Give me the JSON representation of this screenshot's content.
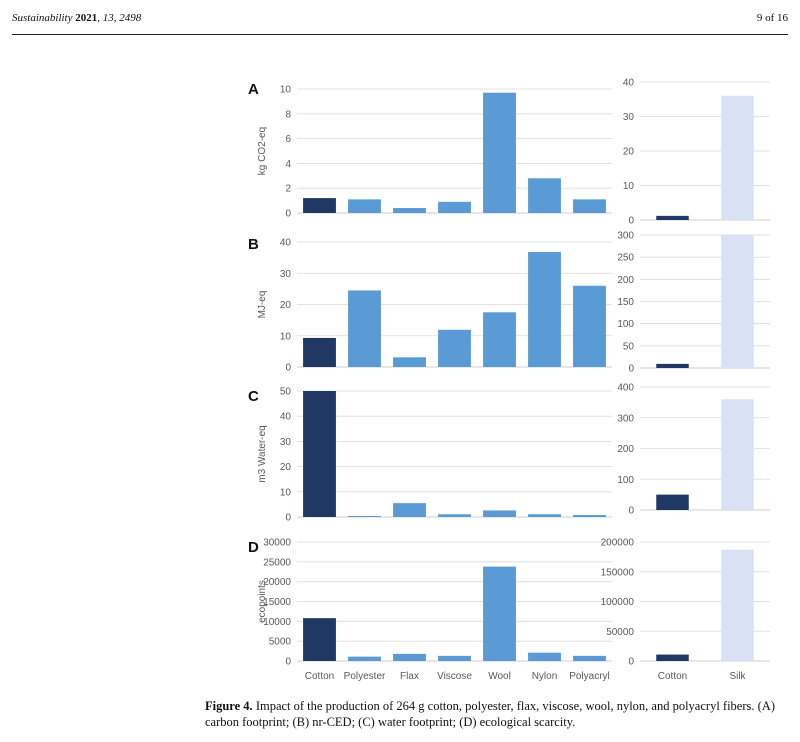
{
  "header": {
    "journal": "Sustainability",
    "year": "2021",
    "volume": "13",
    "article": "2498",
    "page": "9 of 16"
  },
  "colors": {
    "cotton": "#1f3864",
    "synthetic": "#5b9bd5",
    "silk": "#d9e1f5",
    "axis_text": "#595959",
    "grid": "#d9d9d9"
  },
  "chart_data": [
    {
      "type": "bar",
      "panel": "A",
      "title": "",
      "xlabel": "",
      "ylabel": "kg CO2-eq",
      "categories": [
        "Cotton",
        "Polyester",
        "Flax",
        "Viscose",
        "Wool",
        "Nylon",
        "Polyacryl"
      ],
      "values": [
        1.2,
        1.1,
        0.4,
        0.9,
        9.7,
        2.8,
        1.1
      ],
      "ylim": [
        0,
        10
      ],
      "yticks": [
        0,
        2,
        4,
        6,
        8,
        10
      ],
      "tick_labels": [
        "0",
        "2",
        "4",
        "6",
        "8",
        "10"
      ]
    },
    {
      "type": "bar",
      "panel": "A",
      "title": "",
      "xlabel": "",
      "ylabel": "",
      "categories": [
        "Cotton",
        "Silk"
      ],
      "values": [
        1.2,
        36
      ],
      "ylim": [
        0,
        40
      ],
      "yticks": [
        0,
        10,
        20,
        30,
        40
      ],
      "tick_labels": [
        "0",
        "10",
        "20",
        "30",
        "40"
      ]
    },
    {
      "type": "bar",
      "panel": "B",
      "title": "",
      "xlabel": "",
      "ylabel": "MJ-eq",
      "categories": [
        "Cotton",
        "Polyester",
        "Flax",
        "Viscose",
        "Wool",
        "Nylon",
        "Polyacryl"
      ],
      "values": [
        9.3,
        24.5,
        3.1,
        11.9,
        17.5,
        36.8,
        26
      ],
      "ylim": [
        0,
        40
      ],
      "yticks": [
        0,
        10,
        20,
        30,
        40
      ],
      "tick_labels": [
        "0",
        "10",
        "20",
        "30",
        "40"
      ]
    },
    {
      "type": "bar",
      "panel": "B",
      "title": "",
      "xlabel": "",
      "ylabel": "",
      "categories": [
        "Cotton",
        "Silk"
      ],
      "values": [
        9.3,
        300
      ],
      "ylim": [
        0,
        300
      ],
      "yticks": [
        0,
        50,
        100,
        150,
        200,
        250,
        300
      ],
      "tick_labels": [
        "0",
        "50",
        "100",
        "150",
        "200",
        "250",
        "300"
      ]
    },
    {
      "type": "bar",
      "panel": "C",
      "title": "",
      "xlabel": "",
      "ylabel": "m3 Water-eq",
      "categories": [
        "Cotton",
        "Polyester",
        "Flax",
        "Viscose",
        "Wool",
        "Nylon",
        "Polyacryl"
      ],
      "values": [
        50,
        0.4,
        5.5,
        1.1,
        2.6,
        1.1,
        0.8
      ],
      "ylim": [
        0,
        50
      ],
      "yticks": [
        0,
        10,
        20,
        30,
        40,
        50
      ],
      "tick_labels": [
        "0",
        "10",
        "20",
        "30",
        "40",
        "50"
      ]
    },
    {
      "type": "bar",
      "panel": "C",
      "title": "",
      "xlabel": "",
      "ylabel": "",
      "categories": [
        "Cotton",
        "Silk"
      ],
      "values": [
        50,
        360
      ],
      "ylim": [
        0,
        400
      ],
      "yticks": [
        0,
        100,
        200,
        300,
        400
      ],
      "tick_labels": [
        "0",
        "100",
        "200",
        "300",
        "400"
      ]
    },
    {
      "type": "bar",
      "panel": "D",
      "title": "",
      "xlabel": "",
      "ylabel": "ecopoints",
      "categories": [
        "Cotton",
        "Polyester",
        "Flax",
        "Viscose",
        "Wool",
        "Nylon",
        "Polyacryl"
      ],
      "values": [
        10800,
        1100,
        1800,
        1300,
        23800,
        2100,
        1300
      ],
      "ylim": [
        0,
        30000
      ],
      "yticks": [
        0,
        5000,
        10000,
        15000,
        20000,
        25000,
        30000
      ],
      "tick_labels": [
        "0",
        "5000",
        "10000",
        "15000",
        "20000",
        "25000",
        "30000"
      ]
    },
    {
      "type": "bar",
      "panel": "D",
      "title": "",
      "xlabel": "",
      "ylabel": "",
      "categories": [
        "Cotton",
        "Silk"
      ],
      "values": [
        10800,
        187000
      ],
      "ylim": [
        0,
        200000
      ],
      "yticks": [
        0,
        50000,
        100000,
        150000,
        200000
      ],
      "tick_labels": [
        "0",
        "50000",
        "100000",
        "150000",
        "200000"
      ]
    }
  ],
  "caption": {
    "label": "Figure 4.",
    "text": "Impact of the production of 264 g cotton, polyester, flax, viscose, wool, nylon, and polyacryl fibers. (A) carbon footprint; (B) nr-CED; (C) water footprint; (D) ecological scarcity."
  }
}
